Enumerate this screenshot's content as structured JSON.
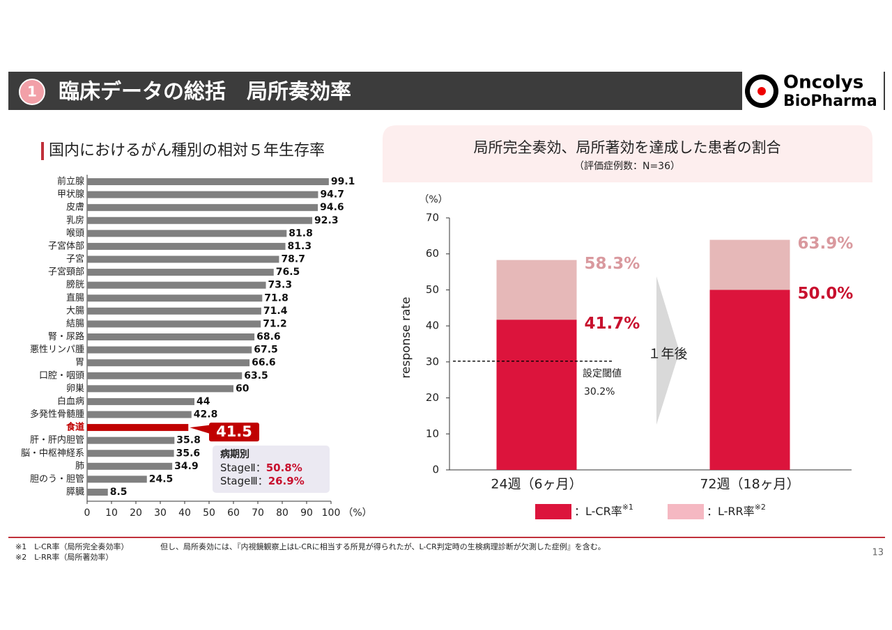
{
  "header": {
    "number": "1",
    "title": "臨床データの総括　局所奏効率",
    "logo_line1": "Oncolys",
    "logo_line2": "BioPharma"
  },
  "footer": {
    "notes": [
      "※1　L-CR率（局所完全奏効率）",
      "※2　L-RR率（局所著効率）"
    ],
    "caveat": "但し、局所奏効には、『内視鏡観察上はL-CRに相当する所見が得られたが、L-CR判定時の生検病理診断が欠測した症例』を含む。",
    "page": "13"
  },
  "chart_data": [
    {
      "type": "barh",
      "title": "国内におけるがん種別の相対５年生存率",
      "categories": [
        "前立腺",
        "甲状腺",
        "皮膚",
        "乳房",
        "喉頭",
        "子宮体部",
        "子宮",
        "子宮頸部",
        "膀胱",
        "直腸",
        "大腸",
        "結腸",
        "腎・尿路",
        "悪性リンパ腫",
        "胃",
        "口腔・咽頭",
        "卵巣",
        "白血病",
        "多発性骨髄腫",
        "食道",
        "肝・肝内胆管",
        "脳・中枢神経系",
        "肺",
        "胆のう・胆管",
        "膵臓"
      ],
      "values": [
        99.1,
        94.7,
        94.6,
        92.3,
        81.8,
        81.3,
        78.7,
        76.5,
        73.3,
        71.8,
        71.4,
        71.2,
        68.6,
        67.5,
        66.6,
        63.5,
        60.0,
        44.0,
        42.8,
        41.5,
        35.8,
        35.6,
        34.9,
        24.5,
        8.5
      ],
      "color": "#808080",
      "highlight": "食道",
      "highlight_color": "#c00000",
      "xlim": [
        0,
        100
      ],
      "xticks": [
        0,
        10,
        20,
        30,
        40,
        50,
        60,
        70,
        80,
        90,
        100
      ],
      "x_unit": "（%）",
      "annotation": {
        "title": "病期別",
        "lines": [
          [
            "StageⅡ：",
            "50.8%"
          ],
          [
            "StageⅢ：",
            "26.9%"
          ]
        ]
      }
    },
    {
      "type": "bar",
      "overlap": true,
      "title": "局所完全奏効、局所著効を達成した患者の割合",
      "subtitle": "（評価症例数：N=36）",
      "categories": [
        "24週（6ヶ月）",
        "72週（18ヶ月）"
      ],
      "series": [
        {
          "name": "：L-CR率",
          "note": "※1",
          "color": "#dc143c",
          "label_color": "#c8102e",
          "values": [
            41.7,
            50.0
          ],
          "value_labels": [
            "41.7%",
            "50.0%"
          ]
        },
        {
          "name": "：L-RR率",
          "note": "※2",
          "color": "#e6b8b8",
          "label_color": "#d9999e",
          "values": [
            58.3,
            63.9
          ],
          "value_labels": [
            "58.3%",
            "63.9%"
          ]
        }
      ],
      "ylabel": "response rate",
      "y_unit": "（%）",
      "ylim": [
        0,
        70
      ],
      "yticks": [
        0,
        10,
        20,
        30,
        40,
        50,
        60,
        70
      ],
      "threshold": {
        "value": 30.2,
        "label": "設定閾値",
        "value_label": "30.2%"
      },
      "arrow_label": "１年後"
    }
  ]
}
